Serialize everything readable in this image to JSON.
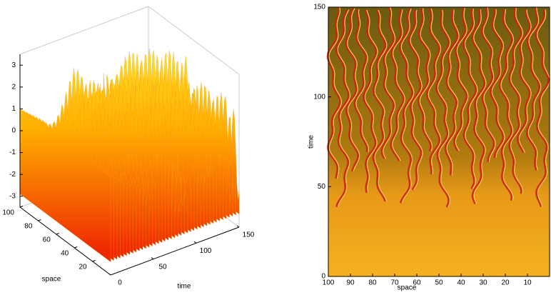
{
  "chart_data": [
    {
      "type": "surface",
      "xlabel": "time",
      "ylabel": "space",
      "xlim": [
        0,
        150
      ],
      "xticks": [
        0,
        50,
        100,
        150
      ],
      "ylim": [
        0,
        100
      ],
      "yticks": [
        20,
        40,
        60,
        80,
        100
      ],
      "zlim": [
        -3.5,
        3.5
      ],
      "zticks": [
        -3,
        -2,
        -1,
        0,
        1,
        2,
        3
      ]
    },
    {
      "type": "image",
      "xlabel": "space",
      "ylabel": "time",
      "xlim": [
        100,
        0
      ],
      "xticks": [
        100,
        90,
        80,
        70,
        60,
        50,
        40,
        30,
        20,
        10
      ],
      "ylim": [
        0,
        150
      ],
      "yticks": [
        0,
        50,
        100,
        150
      ]
    }
  ]
}
